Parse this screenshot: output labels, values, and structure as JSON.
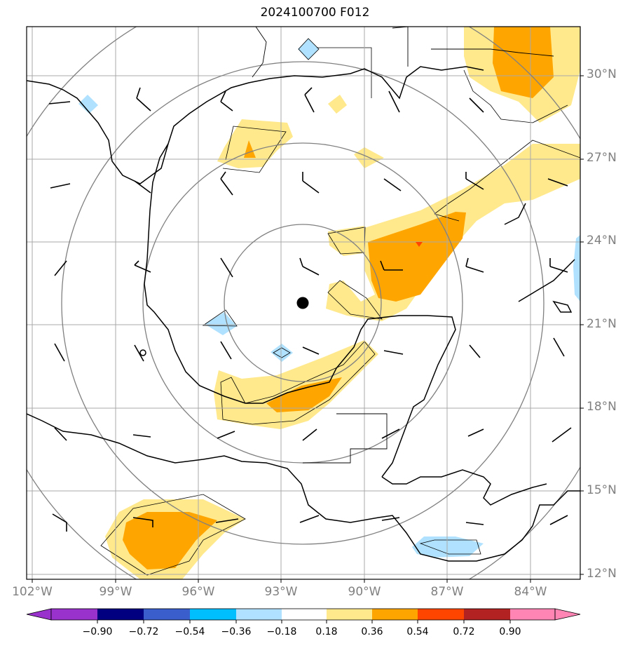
{
  "title": "2024100700 F012",
  "lat_labels": [
    "30°N",
    "27°N",
    "24°N",
    "21°N",
    "18°N",
    "15°N",
    "12°N"
  ],
  "lon_labels": [
    "102°W",
    "99°W",
    "96°W",
    "93°W",
    "90°W",
    "87°W",
    "84°W"
  ],
  "colorbar": {
    "ticks": [
      "−0.90",
      "−0.72",
      "−0.54",
      "−0.36",
      "−0.18",
      "0.18",
      "0.36",
      "0.54",
      "0.72",
      "0.90"
    ],
    "colors": [
      "#9932cc",
      "#000080",
      "#3a5fcd",
      "#00bfff",
      "#b0e2ff",
      "#ffffff",
      "#ffe98c",
      "#ffa500",
      "#ff4500",
      "#b22222",
      "#ff85b4"
    ]
  },
  "colors": {
    "light_blue": "#b0e2ff",
    "light_yellow": "#ffe98c",
    "orange": "#ffa500",
    "red_orange": "#ff4500",
    "grid": "#a9a9a9",
    "range_rings": "#808080"
  },
  "storm_center": {
    "lat": 21.8,
    "lon": -92.2
  }
}
